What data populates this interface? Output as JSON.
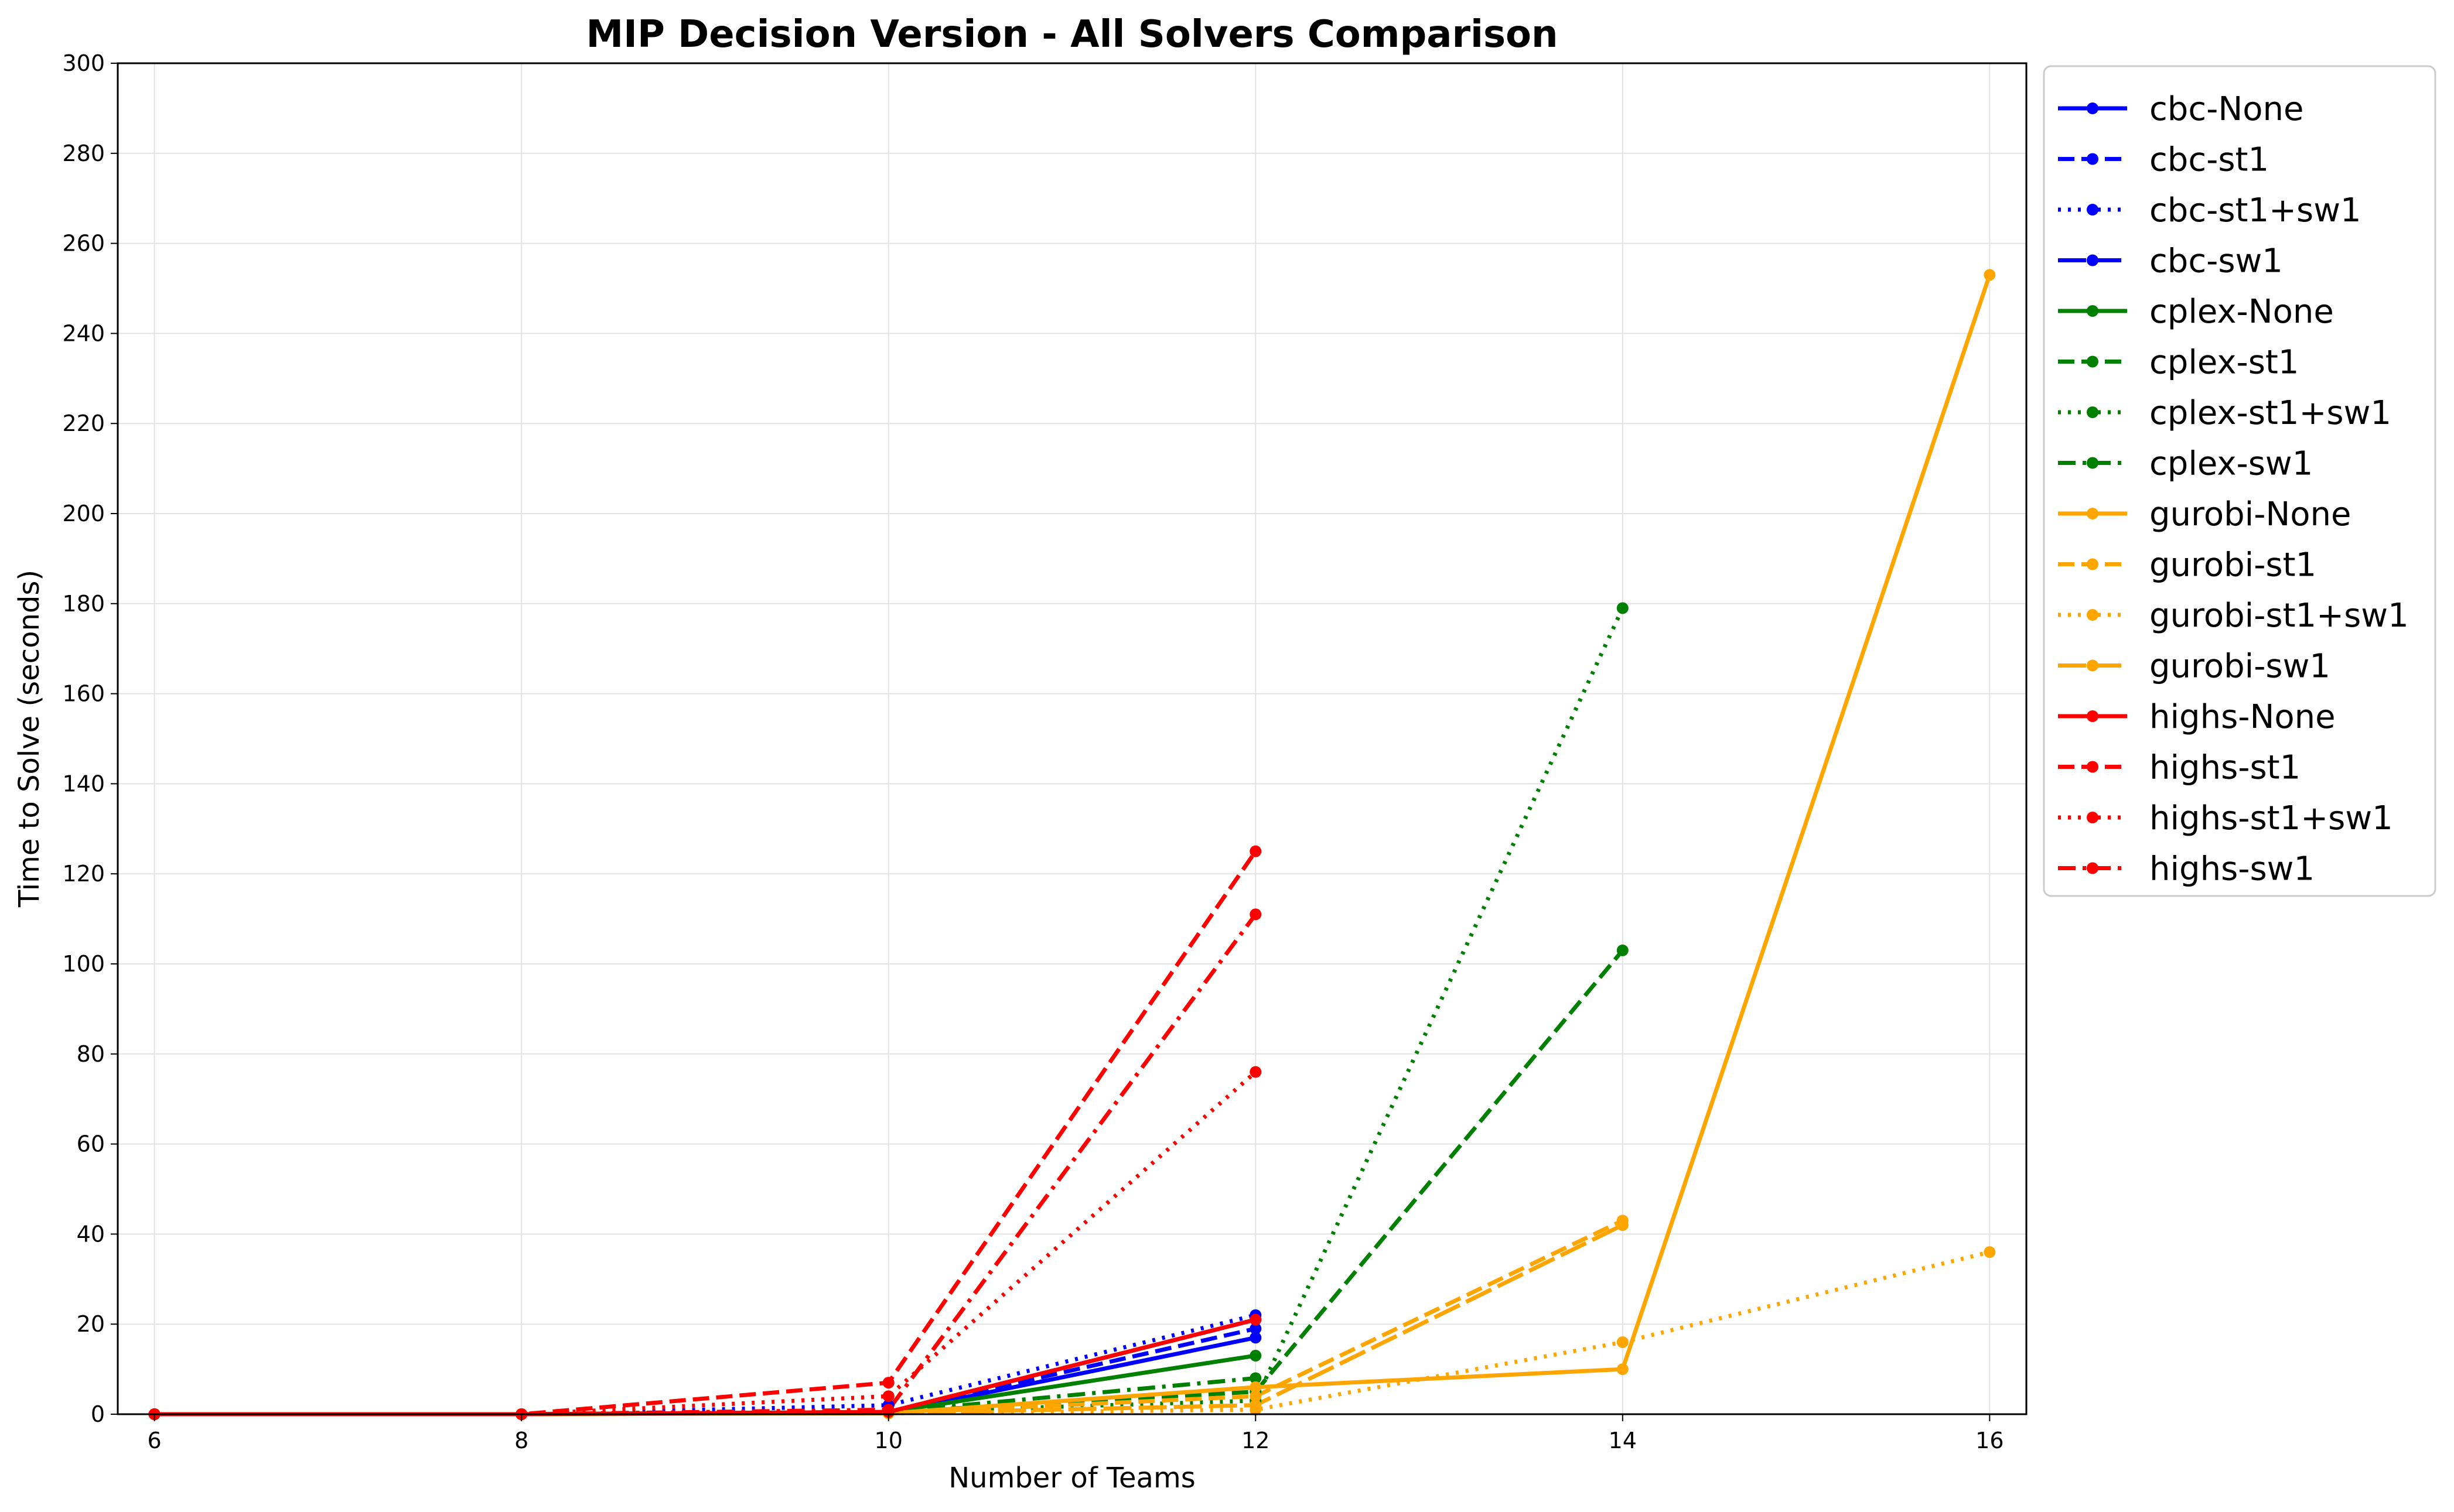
{
  "chart_data": {
    "type": "line",
    "title": "MIP Decision Version - All Solvers Comparison",
    "xlabel": "Number of Teams",
    "ylabel": "Time to Solve (seconds)",
    "xlim": [
      5.8,
      16.2
    ],
    "ylim": [
      0,
      300
    ],
    "xticks": [
      6,
      8,
      10,
      12,
      14,
      16
    ],
    "yticks": [
      0,
      20,
      40,
      60,
      80,
      100,
      120,
      140,
      160,
      180,
      200,
      220,
      240,
      260,
      280,
      300
    ],
    "grid": true,
    "legend_position": "outside-right",
    "series": [
      {
        "name": "cbc-None",
        "color": "#0000ff",
        "linestyle": "solid",
        "points": [
          [
            6,
            0
          ],
          [
            8,
            0
          ],
          [
            10,
            0.3
          ],
          [
            12,
            17
          ]
        ]
      },
      {
        "name": "cbc-st1",
        "color": "#0000ff",
        "linestyle": "dashed",
        "points": [
          [
            6,
            0
          ],
          [
            8,
            0
          ],
          [
            10,
            0.5
          ],
          [
            12,
            19
          ]
        ]
      },
      {
        "name": "cbc-st1+sw1",
        "color": "#0000ff",
        "linestyle": "dotted",
        "points": [
          [
            6,
            0
          ],
          [
            8,
            0
          ],
          [
            10,
            2
          ],
          [
            12,
            22
          ]
        ]
      },
      {
        "name": "cbc-sw1",
        "color": "#0000ff",
        "linestyle": "longdash",
        "points": [
          [
            6,
            0
          ],
          [
            8,
            0
          ],
          [
            10,
            0.5
          ],
          [
            12,
            21
          ]
        ]
      },
      {
        "name": "cplex-None",
        "color": "#008000",
        "linestyle": "solid",
        "points": [
          [
            6,
            0
          ],
          [
            8,
            0
          ],
          [
            10,
            0.5
          ],
          [
            12,
            13
          ]
        ]
      },
      {
        "name": "cplex-st1",
        "color": "#008000",
        "linestyle": "dashed",
        "points": [
          [
            6,
            0
          ],
          [
            8,
            0
          ],
          [
            10,
            0.5
          ],
          [
            12,
            5
          ],
          [
            14,
            103
          ]
        ]
      },
      {
        "name": "cplex-st1+sw1",
        "color": "#008000",
        "linestyle": "dotted",
        "points": [
          [
            6,
            0
          ],
          [
            8,
            0
          ],
          [
            10,
            0.5
          ],
          [
            12,
            3
          ],
          [
            14,
            179
          ]
        ]
      },
      {
        "name": "cplex-sw1",
        "color": "#008000",
        "linestyle": "dashdot",
        "points": [
          [
            6,
            0
          ],
          [
            8,
            0
          ],
          [
            10,
            0.5
          ],
          [
            12,
            8
          ]
        ]
      },
      {
        "name": "gurobi-None",
        "color": "#ffa500",
        "linestyle": "solid",
        "points": [
          [
            6,
            0
          ],
          [
            8,
            0
          ],
          [
            10,
            0.2
          ],
          [
            12,
            6
          ],
          [
            14,
            10
          ],
          [
            16,
            253
          ]
        ]
      },
      {
        "name": "gurobi-st1",
        "color": "#ffa500",
        "linestyle": "dashed",
        "points": [
          [
            6,
            0
          ],
          [
            8,
            0
          ],
          [
            10,
            0.2
          ],
          [
            12,
            4
          ],
          [
            14,
            43
          ]
        ]
      },
      {
        "name": "gurobi-st1+sw1",
        "color": "#ffa500",
        "linestyle": "dotted",
        "points": [
          [
            6,
            0
          ],
          [
            8,
            0
          ],
          [
            10,
            0.2
          ],
          [
            12,
            1
          ],
          [
            14,
            16
          ],
          [
            16,
            36
          ]
        ]
      },
      {
        "name": "gurobi-sw1",
        "color": "#ffa500",
        "linestyle": "longdash",
        "points": [
          [
            6,
            0
          ],
          [
            8,
            0
          ],
          [
            10,
            0.2
          ],
          [
            12,
            2
          ],
          [
            14,
            42
          ]
        ]
      },
      {
        "name": "highs-None",
        "color": "#ff0000",
        "linestyle": "solid",
        "points": [
          [
            6,
            0
          ],
          [
            8,
            0
          ],
          [
            10,
            0.5
          ],
          [
            12,
            21
          ]
        ]
      },
      {
        "name": "highs-st1",
        "color": "#ff0000",
        "linestyle": "dashed",
        "points": [
          [
            6,
            0
          ],
          [
            8,
            0
          ],
          [
            10,
            7
          ],
          [
            12,
            125
          ]
        ]
      },
      {
        "name": "highs-st1+sw1",
        "color": "#ff0000",
        "linestyle": "dotted",
        "points": [
          [
            6,
            0
          ],
          [
            8,
            0
          ],
          [
            10,
            4
          ],
          [
            12,
            76
          ]
        ]
      },
      {
        "name": "highs-sw1",
        "color": "#ff0000",
        "linestyle": "dashdot",
        "points": [
          [
            6,
            0
          ],
          [
            8,
            0
          ],
          [
            10,
            1
          ],
          [
            12,
            111
          ]
        ]
      }
    ]
  }
}
